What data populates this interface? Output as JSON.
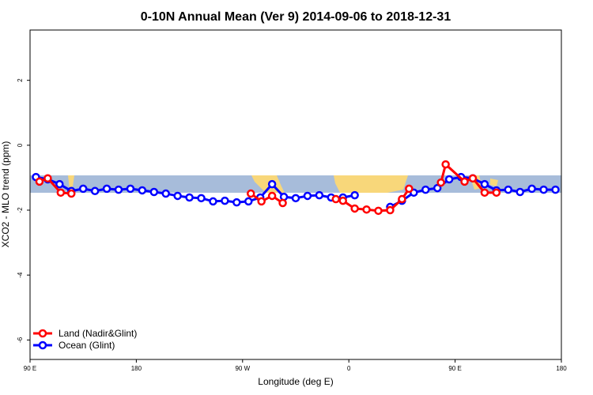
{
  "chart_data": {
    "type": "line",
    "title": "0-10N Annual Mean (Ver 9)   2014-09-06 to 2018-12-31",
    "x_label": "Longitude (deg E)",
    "y_label": "XCO2 - MLO trend (ppm)",
    "xlim": [
      90,
      540
    ],
    "ylim": [
      -6.6,
      3.55
    ],
    "xticks": [
      {
        "value": 90,
        "label": "90 E"
      },
      180,
      {
        "value": 270,
        "label": "90 W"
      },
      {
        "value": 360,
        "label": "0"
      },
      {
        "value": 450,
        "label": "90 E"
      },
      {
        "value": 540,
        "label": "180"
      }
    ],
    "yticks": [
      2,
      0,
      -2,
      -4,
      -6
    ],
    "legend": "bottom-left",
    "series": [
      {
        "name": "Land (Nadir&Glint)",
        "color": "#ff0000",
        "x": [
          98,
          105,
          116,
          125,
          200,
          277,
          286,
          295,
          304,
          330,
          349,
          355,
          365,
          375,
          385,
          395,
          405,
          411,
          425,
          438,
          442,
          458,
          465,
          475,
          485
        ],
        "values": [
          -1.12,
          -1.02,
          -1.46,
          -1.49,
          null,
          -1.49,
          -1.73,
          -1.56,
          -1.78,
          null,
          -1.66,
          -1.71,
          -1.95,
          -1.98,
          -2.02,
          -2.0,
          -1.66,
          -1.34,
          null,
          -1.15,
          -0.59,
          -1.12,
          -1.02,
          -1.46,
          -1.46
        ]
      },
      {
        "name": "Ocean (Glint)",
        "color": "#0000ff",
        "x": [
          95,
          105,
          115,
          125,
          135,
          145,
          155,
          165,
          175,
          185,
          195,
          205,
          215,
          225,
          235,
          245,
          255,
          265,
          275,
          285,
          295,
          305,
          315,
          325,
          335,
          345,
          355,
          365,
          380,
          395,
          405,
          415,
          425,
          435,
          445,
          455,
          465,
          475,
          485,
          495,
          505,
          515,
          525,
          535
        ],
        "values": [
          -0.98,
          -1.05,
          -1.2,
          -1.41,
          -1.34,
          -1.41,
          -1.34,
          -1.37,
          -1.34,
          -1.39,
          -1.44,
          -1.49,
          -1.56,
          -1.61,
          -1.63,
          -1.73,
          -1.71,
          -1.76,
          -1.73,
          -1.61,
          -1.2,
          -1.59,
          -1.63,
          -1.56,
          -1.54,
          -1.61,
          -1.61,
          -1.54,
          null,
          -1.9,
          -1.71,
          -1.46,
          -1.37,
          -1.32,
          -1.05,
          -0.98,
          -1.02,
          -1.2,
          -1.39,
          -1.37,
          -1.44,
          -1.34,
          -1.37,
          -1.37
        ]
      }
    ]
  }
}
